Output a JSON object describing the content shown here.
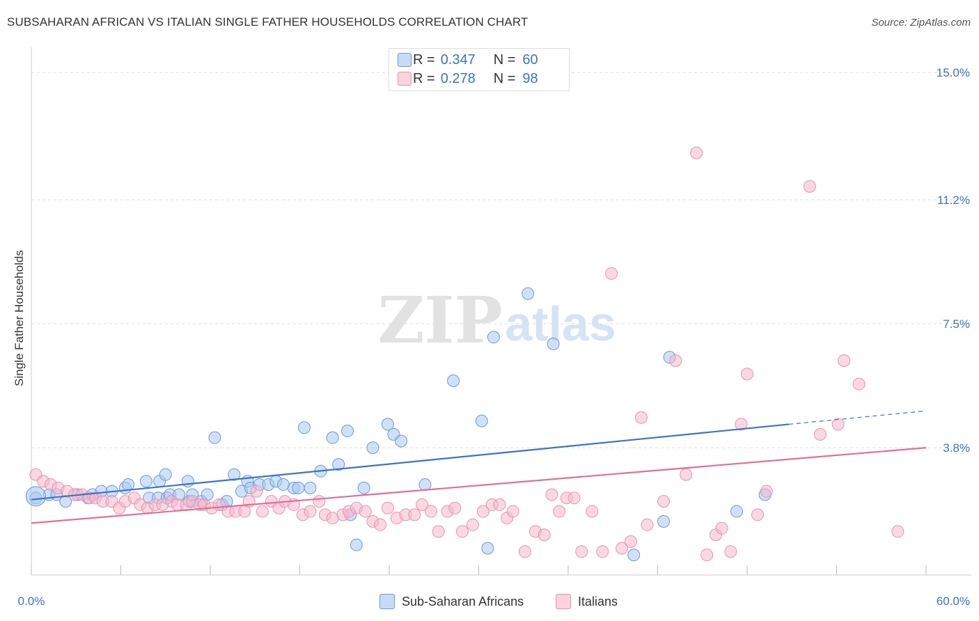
{
  "title": "SUBSAHARAN AFRICAN VS ITALIAN SINGLE FATHER HOUSEHOLDS CORRELATION CHART",
  "source": "Source: ZipAtlas.com",
  "watermark": {
    "zip": "ZIP",
    "atlas": "atlas"
  },
  "legend": {
    "r_label": "R =",
    "n_label": "N =",
    "rows": [
      {
        "r": "0.347",
        "n": "60",
        "color": "#a9c8f0"
      },
      {
        "r": "0.278",
        "n": "98",
        "color": "#f6b8ca"
      }
    ]
  },
  "bottom_legend": [
    {
      "label": "Sub-Saharan Africans",
      "color": "#a9c8f0"
    },
    {
      "label": "Italians",
      "color": "#f6b8ca"
    }
  ],
  "chart_data": {
    "type": "scatter",
    "ylabel": "Single Father Households",
    "xlim": [
      0,
      60
    ],
    "ylim": [
      0,
      15.5
    ],
    "x_tick_labels": [
      "0.0%",
      "60.0%"
    ],
    "y_ticks": [
      3.8,
      7.5,
      11.2,
      15.0
    ],
    "y_tick_labels": [
      "3.8%",
      "7.5%",
      "11.2%",
      "15.0%"
    ],
    "grid": true,
    "series": [
      {
        "name": "Sub-Saharan Africans",
        "color": "#a9c8f0",
        "stroke": "#6a9ad8",
        "trend_color": "#3b73c8",
        "trend": {
          "x0": 0,
          "y0": 2.25,
          "x1": 50.8,
          "y1": 4.5,
          "dash_to_x": 60,
          "dash_to_y": 4.9
        },
        "points": [
          [
            0.3,
            2.3
          ],
          [
            1.2,
            2.4
          ],
          [
            1.7,
            2.4
          ],
          [
            2.3,
            2.2
          ],
          [
            3.1,
            2.4
          ],
          [
            3.8,
            2.3
          ],
          [
            4.1,
            2.4
          ],
          [
            4.7,
            2.5
          ],
          [
            5.4,
            2.5
          ],
          [
            6.3,
            2.6
          ],
          [
            6.5,
            2.7
          ],
          [
            7.9,
            2.3
          ],
          [
            8.5,
            2.3
          ],
          [
            7.7,
            2.8
          ],
          [
            8.6,
            2.8
          ],
          [
            9.0,
            3.0
          ],
          [
            9.1,
            2.3
          ],
          [
            9.3,
            2.4
          ],
          [
            9.9,
            2.4
          ],
          [
            10.6,
            2.2
          ],
          [
            10.8,
            2.4
          ],
          [
            10.5,
            2.8
          ],
          [
            11.4,
            2.2
          ],
          [
            11.8,
            2.4
          ],
          [
            12.3,
            4.1
          ],
          [
            12.8,
            2.1
          ],
          [
            13.1,
            2.2
          ],
          [
            13.6,
            3.0
          ],
          [
            14.1,
            2.5
          ],
          [
            14.5,
            2.8
          ],
          [
            14.7,
            2.6
          ],
          [
            15.3,
            2.7
          ],
          [
            15.9,
            2.7
          ],
          [
            16.4,
            2.8
          ],
          [
            16.9,
            2.7
          ],
          [
            17.6,
            2.6
          ],
          [
            17.9,
            2.6
          ],
          [
            18.3,
            4.4
          ],
          [
            18.7,
            2.6
          ],
          [
            19.4,
            3.1
          ],
          [
            20.2,
            4.1
          ],
          [
            20.6,
            3.3
          ],
          [
            21.2,
            4.3
          ],
          [
            21.4,
            1.8
          ],
          [
            21.8,
            0.9
          ],
          [
            22.3,
            2.6
          ],
          [
            22.9,
            3.8
          ],
          [
            23.9,
            4.5
          ],
          [
            24.3,
            4.2
          ],
          [
            24.8,
            4.0
          ],
          [
            26.4,
            2.7
          ],
          [
            28.3,
            5.8
          ],
          [
            30.2,
            4.6
          ],
          [
            30.6,
            0.8
          ],
          [
            31.0,
            7.1
          ],
          [
            33.3,
            8.4
          ],
          [
            35.0,
            6.9
          ],
          [
            40.4,
            0.6
          ],
          [
            42.4,
            1.6
          ],
          [
            42.8,
            6.5
          ],
          [
            47.3,
            1.9
          ],
          [
            49.2,
            2.4
          ]
        ],
        "big_points": [
          [
            0.3,
            2.35
          ]
        ]
      },
      {
        "name": "Italians",
        "color": "#f6b8ca",
        "stroke": "#e893ad",
        "trend_color": "#e06f98",
        "trend": {
          "x0": 0,
          "y0": 1.55,
          "x1": 60,
          "y1": 3.8
        },
        "points": [
          [
            0.3,
            3.0
          ],
          [
            0.8,
            2.8
          ],
          [
            1.3,
            2.7
          ],
          [
            1.8,
            2.6
          ],
          [
            2.4,
            2.5
          ],
          [
            2.9,
            2.4
          ],
          [
            3.4,
            2.4
          ],
          [
            3.9,
            2.3
          ],
          [
            4.3,
            2.3
          ],
          [
            4.8,
            2.2
          ],
          [
            5.4,
            2.2
          ],
          [
            5.9,
            2.0
          ],
          [
            6.3,
            2.2
          ],
          [
            6.9,
            2.3
          ],
          [
            7.3,
            2.1
          ],
          [
            7.8,
            2.0
          ],
          [
            8.3,
            2.1
          ],
          [
            8.8,
            2.1
          ],
          [
            9.4,
            2.2
          ],
          [
            9.8,
            2.1
          ],
          [
            10.4,
            2.1
          ],
          [
            10.8,
            2.2
          ],
          [
            11.3,
            2.1
          ],
          [
            11.6,
            2.1
          ],
          [
            12.1,
            2.0
          ],
          [
            12.6,
            2.1
          ],
          [
            13.2,
            1.9
          ],
          [
            13.7,
            1.9
          ],
          [
            14.3,
            1.9
          ],
          [
            14.6,
            2.2
          ],
          [
            15.1,
            2.5
          ],
          [
            15.5,
            1.9
          ],
          [
            16.1,
            2.2
          ],
          [
            16.6,
            2.0
          ],
          [
            17.0,
            2.2
          ],
          [
            17.6,
            2.1
          ],
          [
            18.2,
            1.8
          ],
          [
            18.7,
            1.9
          ],
          [
            19.3,
            2.2
          ],
          [
            19.7,
            1.8
          ],
          [
            20.2,
            1.7
          ],
          [
            20.9,
            1.8
          ],
          [
            21.3,
            1.9
          ],
          [
            21.8,
            2.0
          ],
          [
            22.4,
            1.9
          ],
          [
            22.9,
            1.6
          ],
          [
            23.4,
            1.5
          ],
          [
            23.9,
            2.0
          ],
          [
            24.5,
            1.7
          ],
          [
            25.1,
            1.8
          ],
          [
            25.7,
            1.8
          ],
          [
            26.2,
            2.1
          ],
          [
            26.8,
            1.9
          ],
          [
            27.3,
            1.3
          ],
          [
            27.9,
            1.9
          ],
          [
            28.4,
            2.0
          ],
          [
            28.9,
            1.3
          ],
          [
            29.6,
            1.5
          ],
          [
            30.3,
            1.9
          ],
          [
            30.9,
            2.1
          ],
          [
            31.4,
            2.1
          ],
          [
            31.9,
            1.7
          ],
          [
            32.3,
            1.9
          ],
          [
            33.1,
            0.7
          ],
          [
            33.8,
            1.3
          ],
          [
            34.4,
            1.2
          ],
          [
            34.9,
            2.4
          ],
          [
            35.4,
            1.9
          ],
          [
            35.9,
            2.3
          ],
          [
            36.4,
            2.3
          ],
          [
            36.9,
            0.7
          ],
          [
            37.6,
            1.9
          ],
          [
            38.3,
            0.7
          ],
          [
            38.9,
            9.0
          ],
          [
            39.6,
            0.8
          ],
          [
            40.2,
            1.0
          ],
          [
            40.9,
            4.7
          ],
          [
            41.3,
            1.5
          ],
          [
            42.4,
            2.2
          ],
          [
            43.2,
            6.4
          ],
          [
            43.9,
            3.0
          ],
          [
            44.6,
            12.6
          ],
          [
            45.3,
            0.6
          ],
          [
            45.9,
            1.2
          ],
          [
            46.3,
            1.4
          ],
          [
            46.9,
            0.7
          ],
          [
            47.6,
            4.5
          ],
          [
            48.0,
            6.0
          ],
          [
            48.7,
            1.8
          ],
          [
            49.3,
            2.5
          ],
          [
            52.2,
            11.6
          ],
          [
            52.9,
            4.2
          ],
          [
            54.1,
            4.5
          ],
          [
            54.5,
            6.4
          ],
          [
            55.5,
            5.7
          ],
          [
            58.1,
            1.3
          ]
        ]
      }
    ]
  }
}
